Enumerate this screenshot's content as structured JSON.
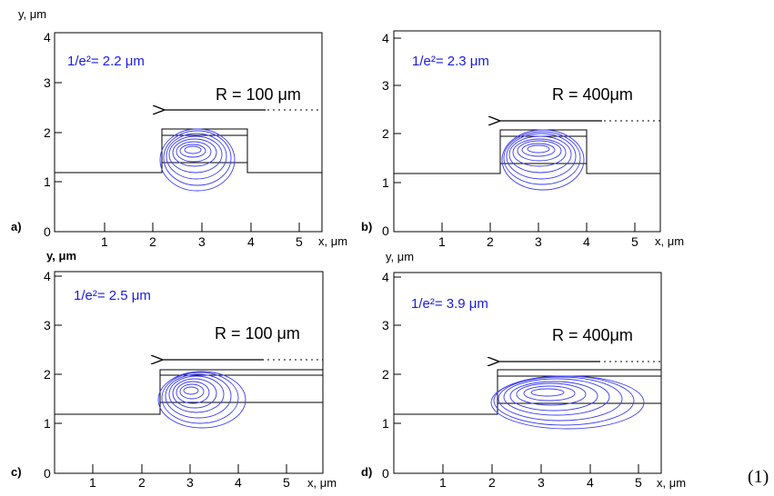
{
  "colors": {
    "contour": "#3c3cf0",
    "label": "#1a1ae0",
    "line": "#000000"
  },
  "equation_number": "(1)",
  "x_axis_label": "x, μm",
  "panels": [
    {
      "id": "a",
      "letter": "a)",
      "y_axis_label": "y, μm",
      "y_label_bold": false,
      "mode_size": "1/e²= 2.2 μm",
      "radius": "R = 100 μm",
      "xticks": [
        "1",
        "2",
        "3",
        "4",
        "5"
      ],
      "yticks": [
        "0",
        "1",
        "2",
        "3",
        "4"
      ],
      "guide_type": "rib"
    },
    {
      "id": "b",
      "letter": "b)",
      "y_axis_label": "y, μm",
      "y_label_bold": false,
      "mode_size": "1/e²= 2.3 μm",
      "radius": "R = 400μm",
      "xticks": [
        "1",
        "2",
        "3",
        "4",
        "5"
      ],
      "yticks": [
        "0",
        "1",
        "2",
        "3",
        "4"
      ],
      "guide_type": "rib"
    },
    {
      "id": "c",
      "letter": "c)",
      "y_axis_label": "y, μm",
      "y_label_bold": true,
      "mode_size": "1/e²= 2.5 μm",
      "radius": "R = 100 μm",
      "xticks": [
        "1",
        "2",
        "3",
        "4",
        "5"
      ],
      "yticks": [
        "0",
        "1",
        "2",
        "3",
        "4"
      ],
      "guide_type": "step"
    },
    {
      "id": "d",
      "letter": "d)",
      "y_axis_label": "y, μm",
      "y_label_bold": false,
      "mode_size": "1/e²= 3.9 μm",
      "radius": "R = 400μm",
      "xticks": [
        "1",
        "2",
        "3",
        "4",
        "5"
      ],
      "yticks": [
        "0",
        "1",
        "2",
        "3",
        "4"
      ],
      "guide_type": "step"
    }
  ]
}
